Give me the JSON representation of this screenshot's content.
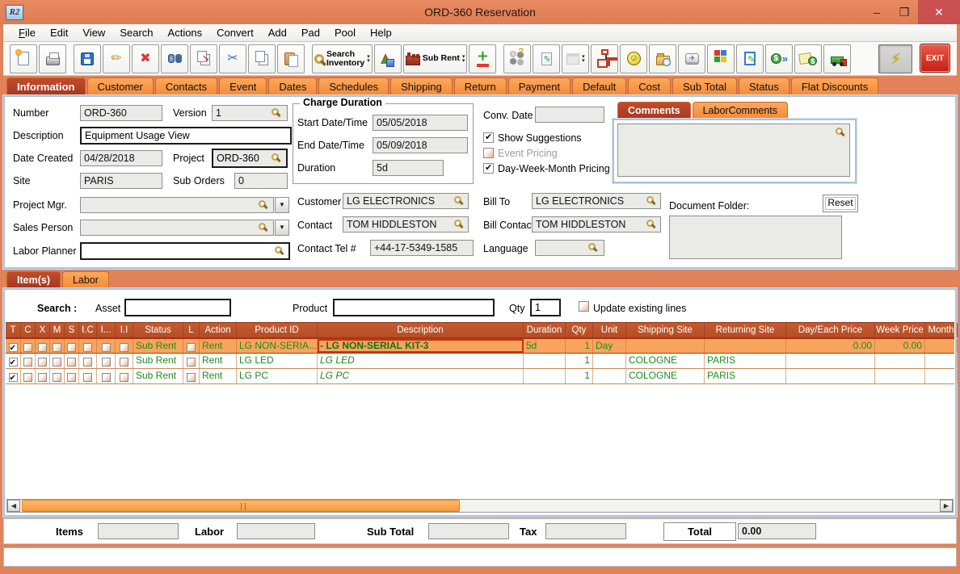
{
  "window": {
    "title": "ORD-360 Reservation",
    "icon_text": "R2",
    "minimize": "–",
    "maximize": "❒",
    "close": "✕"
  },
  "menu": [
    "File",
    "Edit",
    "View",
    "Search",
    "Actions",
    "Convert",
    "Add",
    "Pad",
    "Pool",
    "Help"
  ],
  "toolbar": [
    {
      "name": "new-document"
    },
    {
      "name": "print"
    },
    {
      "sep": true
    },
    {
      "name": "save"
    },
    {
      "name": "edit"
    },
    {
      "name": "delete"
    },
    {
      "name": "find"
    },
    {
      "name": "copy-move"
    },
    {
      "name": "cut"
    },
    {
      "name": "copy"
    },
    {
      "name": "paste"
    },
    {
      "sep": true
    },
    {
      "name": "search-inventory",
      "label": "Search\nInventory",
      "dropdown": true
    },
    {
      "name": "shapes"
    },
    {
      "name": "sub-rent",
      "label": "Sub Rent",
      "dropdown": true
    },
    {
      "name": "add-line"
    },
    {
      "sep": true
    },
    {
      "name": "group-help"
    },
    {
      "name": "notes"
    },
    {
      "name": "calendar",
      "dropdown": true,
      "disabled": true
    },
    {
      "name": "org-chart"
    },
    {
      "name": "smiley"
    },
    {
      "name": "folder-history"
    },
    {
      "name": "shortcut-key"
    },
    {
      "name": "cubes"
    },
    {
      "name": "doc-edit"
    },
    {
      "name": "money-transfer"
    },
    {
      "name": "invoice"
    },
    {
      "name": "dispatch-truck"
    },
    {
      "gap": 32
    },
    {
      "name": "quick-action",
      "pressed": true
    }
  ],
  "exit_label": "EXIT",
  "main_tabs": {
    "active": "Information",
    "items": [
      "Information",
      "Customer",
      "Contacts",
      "Event",
      "Dates",
      "Schedules",
      "Shipping",
      "Return",
      "Payment",
      "Default",
      "Cost",
      "Sub Total",
      "Status",
      "Flat Discounts"
    ]
  },
  "form": {
    "number": {
      "label": "Number",
      "value": "ORD-360"
    },
    "version": {
      "label": "Version",
      "value": "1"
    },
    "description": {
      "label": "Description",
      "value": "Equipment Usage View"
    },
    "date_created": {
      "label": "Date Created",
      "value": "04/28/2018"
    },
    "project": {
      "label": "Project",
      "value": "ORD-360"
    },
    "site": {
      "label": "Site",
      "value": "PARIS"
    },
    "sub_orders": {
      "label": "Sub Orders",
      "value": "0"
    },
    "project_mgr": {
      "label": "Project Mgr.",
      "value": ""
    },
    "sales_person": {
      "label": "Sales Person",
      "value": ""
    },
    "labor_planner": {
      "label": "Labor Planner",
      "value": ""
    }
  },
  "charge_duration": {
    "title": "Charge Duration",
    "start": {
      "label": "Start Date/Time",
      "value": "05/05/2018"
    },
    "end": {
      "label": "End Date/Time",
      "value": "05/09/2018"
    },
    "duration": {
      "label": "Duration",
      "value": "5d"
    }
  },
  "conv_date": {
    "label": "Conv. Date",
    "value": ""
  },
  "options": [
    {
      "label": "Show Suggestions",
      "checked": true,
      "disabled": false
    },
    {
      "label": "Event Pricing",
      "checked": false,
      "disabled": true
    },
    {
      "label": "Day-Week-Month Pricing",
      "checked": true,
      "disabled": false
    }
  ],
  "parties": {
    "customer": {
      "label": "Customer",
      "value": "LG ELECTRONICS"
    },
    "bill_to": {
      "label": "Bill To",
      "value": "LG ELECTRONICS"
    },
    "contact": {
      "label": "Contact",
      "value": "TOM HIDDLESTON"
    },
    "bill_contact": {
      "label": "Bill Contact",
      "value": "TOM HIDDLESTON"
    },
    "contact_tel": {
      "label": "Contact Tel #",
      "value": "+44-17-5349-1585"
    },
    "language": {
      "label": "Language",
      "value": ""
    }
  },
  "comments": {
    "tabs": [
      "Comments",
      "LaborComments"
    ],
    "active": "Comments",
    "value": ""
  },
  "document_folder": {
    "label": "Document Folder:",
    "reset_label": "Reset",
    "value": ""
  },
  "items_section": {
    "tabs": [
      "Item(s)",
      "Labor"
    ],
    "active": "Item(s)",
    "search_label": "Search :",
    "asset_label": "Asset",
    "asset_value": "",
    "product_label": "Product",
    "product_value": "",
    "qty_label": "Qty",
    "qty_value": "1",
    "update_label": "Update existing lines",
    "update_checked": false
  },
  "items_table": {
    "columns": [
      "T",
      "C",
      "X",
      "M",
      "S",
      "I.C",
      "I...",
      "I.I",
      "Status",
      "L",
      "Action",
      "Product ID",
      "Description",
      "Duration",
      "Qty",
      "Unit",
      "Shipping Site",
      "Returning Site",
      "Day/Each Price",
      "Week Price",
      "Month"
    ],
    "rows": [
      {
        "t_checked": true,
        "status": "Sub Rent",
        "l_checked": false,
        "action": "Rent",
        "product_id": "LG NON-SERIA...",
        "description": "-  LG NON-SERIAL KIT-3",
        "duration": "5d",
        "qty": "1",
        "unit": "Day",
        "shipping_site": "",
        "returning_site": "",
        "day_each_price": "0.00",
        "week_price": "0.00",
        "month": "",
        "selected": true,
        "desc_style": "bold"
      },
      {
        "t_checked": true,
        "status": "Sub Rent",
        "l_checked": false,
        "action": "Rent",
        "product_id": "LG LED",
        "description": "LG LED",
        "duration": "",
        "qty": "1",
        "unit": "",
        "shipping_site": "COLOGNE",
        "returning_site": "PARIS",
        "day_each_price": "",
        "week_price": "",
        "month": "",
        "selected": false,
        "desc_style": "italic"
      },
      {
        "t_checked": true,
        "status": "Sub Rent",
        "l_checked": false,
        "action": "Rent",
        "product_id": "LG PC",
        "description": "LG PC",
        "duration": "",
        "qty": "1",
        "unit": "",
        "shipping_site": "COLOGNE",
        "returning_site": "PARIS",
        "day_each_price": "",
        "week_price": "",
        "month": "",
        "selected": false,
        "desc_style": "italic"
      }
    ]
  },
  "totals": {
    "items_label": "Items",
    "items_value": "",
    "labor_label": "Labor",
    "labor_value": "",
    "sub_total_label": "Sub Total",
    "sub_total_value": "",
    "tax_label": "Tax",
    "tax_value": "",
    "total_label": "Total",
    "total_value": "0.00"
  },
  "colors": {
    "titlebar": "#E2825A",
    "tab_active": "#AD3A20",
    "tab_orange": "#F79646",
    "table_header": "#C0552B",
    "selected_row": "#F9A45C",
    "data_green": "#1E8C1E",
    "close_red": "#C9504E"
  }
}
